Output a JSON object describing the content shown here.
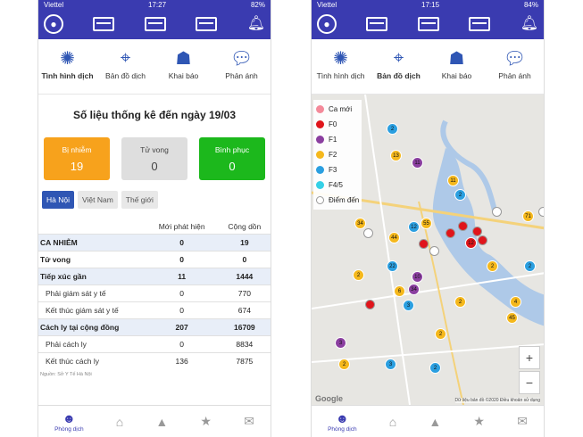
{
  "status_left": {
    "carrier": "Viettel",
    "time": "17:27",
    "battery": "82%"
  },
  "status_right": {
    "carrier": "Viettel",
    "time": "17:15",
    "battery": "84%"
  },
  "nav": [
    "Tình hình dịch",
    "Bản đồ dịch",
    "Khai báo",
    "Phản ánh"
  ],
  "title": "Số liệu thống kê đến ngày 19/03",
  "cards": [
    {
      "label": "Bị nhiễm",
      "value": "19",
      "color": "#f7a21c"
    },
    {
      "label": "Tử vong",
      "value": "0",
      "color": "#dedede"
    },
    {
      "label": "Bình phục",
      "value": "0",
      "color": "#1cb81c"
    }
  ],
  "tabs": [
    "Hà Nội",
    "Việt Nam",
    "Thế giới"
  ],
  "table": {
    "headers": [
      "",
      "Mới phát hiện",
      "Cộng dồn"
    ],
    "rows": [
      [
        "CA NHIỄM",
        "0",
        "19"
      ],
      [
        "Tử vong",
        "0",
        "0"
      ],
      [
        "Tiếp xúc gần",
        "11",
        "1444"
      ],
      [
        "Phải giám sát y tế",
        "0",
        "770"
      ],
      [
        "Kết thúc giám sát y tế",
        "0",
        "674"
      ],
      [
        "Cách ly tại cộng đồng",
        "207",
        "16709"
      ],
      [
        "Phải cách ly",
        "0",
        "8834"
      ],
      [
        "Kết thúc cách ly",
        "136",
        "7875"
      ]
    ]
  },
  "source": "Nguồn: Sở Y Tế Hà Nội",
  "bottom_label": "Phòng dịch",
  "legend": [
    {
      "label": "Ca mới",
      "color": "#f48a9a"
    },
    {
      "label": "F0",
      "color": "#e0151b"
    },
    {
      "label": "F1",
      "color": "#8b3fa0"
    },
    {
      "label": "F2",
      "color": "#f5b81c"
    },
    {
      "label": "F3",
      "color": "#2b9fe0"
    },
    {
      "label": "F4/5",
      "color": "#35d0e6"
    },
    {
      "label": "Điểm đến",
      "color": "#ffffff"
    }
  ],
  "map": {
    "zoom_in": "+",
    "zoom_out": "−",
    "footer": "Dữ liệu bản đồ ©2020   Điều khoản sử dụng",
    "google": "Google",
    "markers": [
      {
        "t": "2",
        "c": "#2b9fe0"
      },
      {
        "t": "13",
        "c": "#f5b81c"
      },
      {
        "t": "11",
        "c": "#8b3fa0"
      },
      {
        "t": "11",
        "c": "#f5b81c"
      },
      {
        "t": "2",
        "c": "#2b9fe0"
      },
      {
        "t": "12",
        "c": "#2b9fe0"
      },
      {
        "t": "55",
        "c": "#f5b81c"
      },
      {
        "t": "34",
        "c": "#f5b81c"
      },
      {
        "t": "44",
        "c": "#f5b81c"
      },
      {
        "t": "71",
        "c": "#f5b81c"
      },
      {
        "t": "12",
        "c": "#e0151b"
      },
      {
        "t": "22",
        "c": "#2b9fe0"
      },
      {
        "t": "2",
        "c": "#f5b81c"
      },
      {
        "t": "10",
        "c": "#8b3fa0"
      },
      {
        "t": "2",
        "c": "#2b9fe0"
      },
      {
        "t": "2",
        "c": "#f5b81c"
      },
      {
        "t": "6",
        "c": "#f5b81c"
      },
      {
        "t": "34",
        "c": "#8b3fa0"
      },
      {
        "t": "3",
        "c": "#2b9fe0"
      },
      {
        "t": "2",
        "c": "#f5b81c"
      },
      {
        "t": "4",
        "c": "#f5b81c"
      },
      {
        "t": "45",
        "c": "#f5b81c"
      },
      {
        "t": "2",
        "c": "#f5b81c"
      },
      {
        "t": "3",
        "c": "#2b9fe0"
      },
      {
        "t": "3",
        "c": "#8b3fa0"
      },
      {
        "t": "2",
        "c": "#2b9fe0"
      },
      {
        "t": "2",
        "c": "#f5b81c"
      }
    ]
  }
}
